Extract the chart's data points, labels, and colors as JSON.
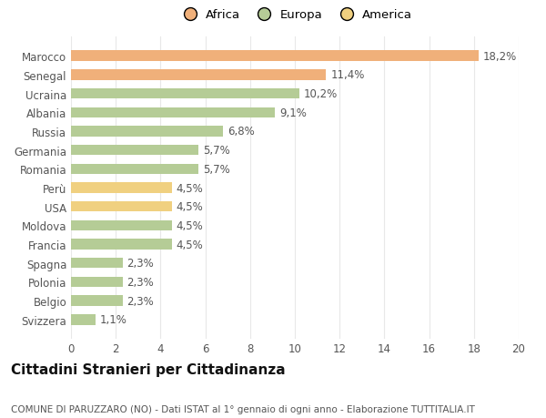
{
  "countries": [
    "Svizzera",
    "Belgio",
    "Polonia",
    "Spagna",
    "Francia",
    "Moldova",
    "USA",
    "Perù",
    "Romania",
    "Germania",
    "Russia",
    "Albania",
    "Ucraina",
    "Senegal",
    "Marocco"
  ],
  "values": [
    1.1,
    2.3,
    2.3,
    2.3,
    4.5,
    4.5,
    4.5,
    4.5,
    5.7,
    5.7,
    6.8,
    9.1,
    10.2,
    11.4,
    18.2
  ],
  "labels": [
    "1,1%",
    "2,3%",
    "2,3%",
    "2,3%",
    "4,5%",
    "4,5%",
    "4,5%",
    "4,5%",
    "5,7%",
    "5,7%",
    "6,8%",
    "9,1%",
    "10,2%",
    "11,4%",
    "18,2%"
  ],
  "colors": [
    "#b5cc96",
    "#b5cc96",
    "#b5cc96",
    "#b5cc96",
    "#b5cc96",
    "#b5cc96",
    "#f0d080",
    "#f0d080",
    "#b5cc96",
    "#b5cc96",
    "#b5cc96",
    "#b5cc96",
    "#b5cc96",
    "#f0b07a",
    "#f0b07a"
  ],
  "legend_labels": [
    "Africa",
    "Europa",
    "America"
  ],
  "legend_colors": [
    "#f0b07a",
    "#b5cc96",
    "#f0d080"
  ],
  "title": "Cittadini Stranieri per Cittadinanza",
  "subtitle": "COMUNE DI PARUZZARO (NO) - Dati ISTAT al 1° gennaio di ogni anno - Elaborazione TUTTITALIA.IT",
  "xlim": [
    0,
    20
  ],
  "xticks": [
    0,
    2,
    4,
    6,
    8,
    10,
    12,
    14,
    16,
    18,
    20
  ],
  "background_color": "#ffffff",
  "grid_color": "#e8e8e8",
  "bar_height": 0.55,
  "label_fontsize": 8.5,
  "tick_fontsize": 8.5,
  "title_fontsize": 11,
  "subtitle_fontsize": 7.5,
  "ytick_color": "#555555",
  "xtick_color": "#555555",
  "label_color": "#555555"
}
